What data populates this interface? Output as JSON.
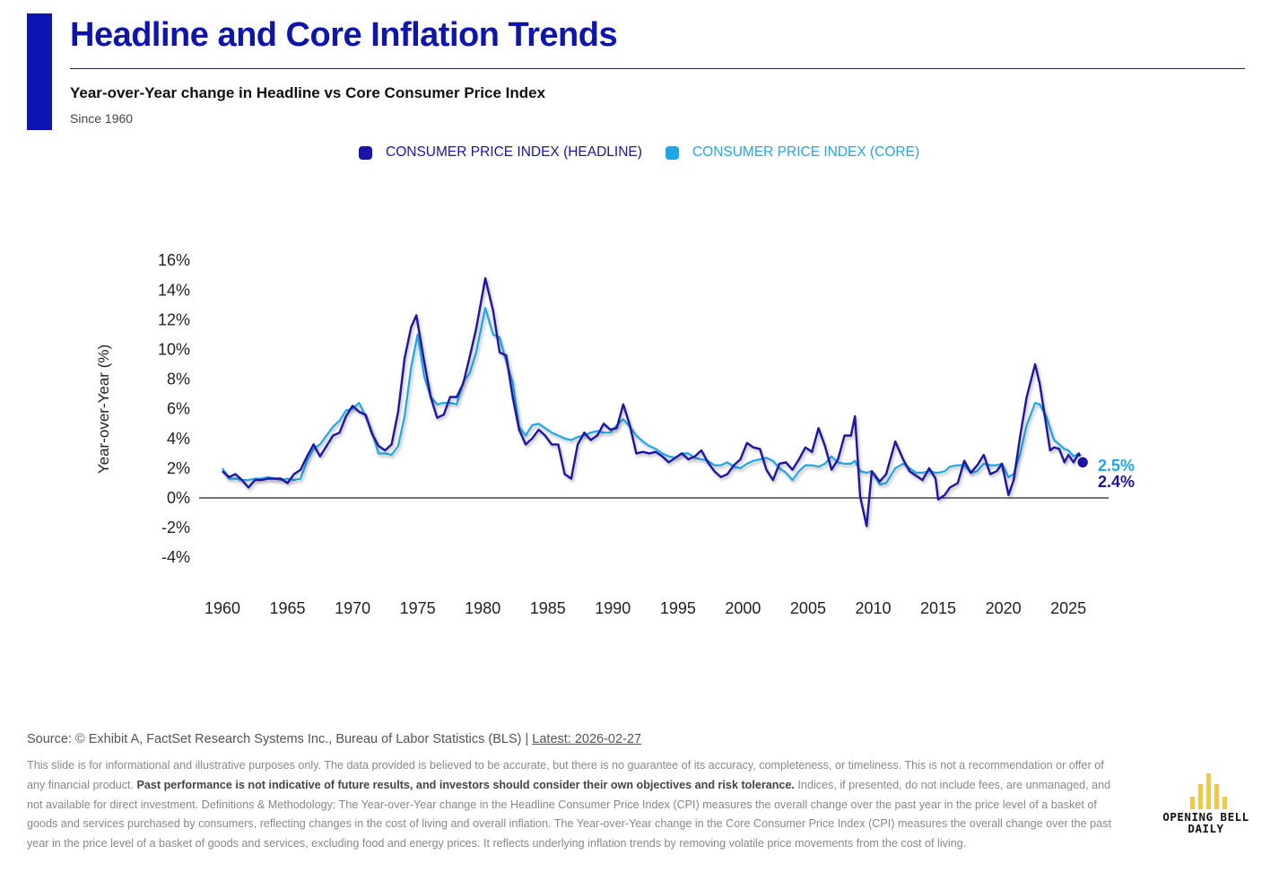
{
  "header": {
    "title": "Headline and Core Inflation Trends",
    "subtitle": "Year-over-Year change in Headline vs Core Consumer Price Index",
    "since": "Since 1960"
  },
  "colors": {
    "accent": "#0d14b3",
    "headline": "#1a14a8",
    "core": "#1ea7e8"
  },
  "chart_data": {
    "type": "line",
    "title": "",
    "xlabel": "",
    "ylabel": "Year-over-Year (%)",
    "xlim": [
      1959.2,
      1962.0
    ],
    "xlim_note": "",
    "x_ticks": [
      1960,
      1965,
      1970,
      1975,
      1980,
      1985,
      1990,
      1995,
      2000,
      2005,
      2010,
      2015,
      2020,
      2025
    ],
    "y_ticks": [
      16,
      14,
      12,
      10,
      8,
      6,
      4,
      2,
      0,
      -2,
      -4
    ],
    "y_tick_labels": [
      "16%",
      "14%",
      "12%",
      "10%",
      "8%",
      "6%",
      "4%",
      "2%",
      "0%",
      "-2%",
      "-4%"
    ],
    "ylim": [
      -4,
      16
    ],
    "grid": false,
    "legend_position": "top-center",
    "series": [
      {
        "name": "CONSUMER PRICE INDEX (HEADLINE)",
        "color": "#1a14a8",
        "end_label": "2.4%",
        "points": [
          [
            1960.0,
            1.8
          ],
          [
            1960.5,
            1.4
          ],
          [
            1961.0,
            1.6
          ],
          [
            1961.5,
            1.2
          ],
          [
            1962.0,
            0.7
          ],
          [
            1962.5,
            1.2
          ],
          [
            1963.0,
            1.2
          ],
          [
            1963.5,
            1.3
          ],
          [
            1964.0,
            1.3
          ],
          [
            1964.5,
            1.3
          ],
          [
            1965.0,
            1.0
          ],
          [
            1965.5,
            1.6
          ],
          [
            1966.0,
            1.9
          ],
          [
            1966.5,
            2.8
          ],
          [
            1967.0,
            3.6
          ],
          [
            1967.5,
            2.8
          ],
          [
            1968.0,
            3.5
          ],
          [
            1968.5,
            4.2
          ],
          [
            1969.0,
            4.4
          ],
          [
            1969.5,
            5.5
          ],
          [
            1970.0,
            6.2
          ],
          [
            1970.5,
            5.8
          ],
          [
            1971.0,
            5.6
          ],
          [
            1971.5,
            4.3
          ],
          [
            1972.0,
            3.5
          ],
          [
            1972.5,
            3.2
          ],
          [
            1973.0,
            3.6
          ],
          [
            1973.5,
            5.8
          ],
          [
            1974.0,
            9.4
          ],
          [
            1974.5,
            11.5
          ],
          [
            1974.9,
            12.3
          ],
          [
            1975.5,
            9.2
          ],
          [
            1976.0,
            6.8
          ],
          [
            1976.5,
            5.4
          ],
          [
            1977.0,
            5.6
          ],
          [
            1977.5,
            6.8
          ],
          [
            1978.0,
            6.8
          ],
          [
            1978.5,
            7.7
          ],
          [
            1979.0,
            9.5
          ],
          [
            1979.5,
            11.4
          ],
          [
            1980.2,
            14.8
          ],
          [
            1980.8,
            12.6
          ],
          [
            1981.3,
            9.8
          ],
          [
            1981.8,
            9.6
          ],
          [
            1982.3,
            6.8
          ],
          [
            1982.8,
            4.6
          ],
          [
            1983.3,
            3.6
          ],
          [
            1983.8,
            4.0
          ],
          [
            1984.3,
            4.6
          ],
          [
            1984.8,
            4.2
          ],
          [
            1985.3,
            3.6
          ],
          [
            1985.8,
            3.6
          ],
          [
            1986.3,
            1.6
          ],
          [
            1986.8,
            1.3
          ],
          [
            1987.3,
            3.6
          ],
          [
            1987.8,
            4.4
          ],
          [
            1988.3,
            3.9
          ],
          [
            1988.8,
            4.2
          ],
          [
            1989.3,
            5.0
          ],
          [
            1989.8,
            4.6
          ],
          [
            1990.3,
            4.7
          ],
          [
            1990.8,
            6.3
          ],
          [
            1991.3,
            4.9
          ],
          [
            1991.8,
            3.0
          ],
          [
            1992.3,
            3.1
          ],
          [
            1992.8,
            3.0
          ],
          [
            1993.3,
            3.1
          ],
          [
            1993.8,
            2.8
          ],
          [
            1994.3,
            2.4
          ],
          [
            1994.8,
            2.7
          ],
          [
            1995.3,
            3.0
          ],
          [
            1995.8,
            2.6
          ],
          [
            1996.3,
            2.8
          ],
          [
            1996.8,
            3.2
          ],
          [
            1997.3,
            2.4
          ],
          [
            1997.8,
            1.8
          ],
          [
            1998.3,
            1.4
          ],
          [
            1998.8,
            1.6
          ],
          [
            1999.3,
            2.2
          ],
          [
            1999.8,
            2.6
          ],
          [
            2000.3,
            3.7
          ],
          [
            2000.8,
            3.4
          ],
          [
            2001.3,
            3.3
          ],
          [
            2001.8,
            1.9
          ],
          [
            2002.3,
            1.2
          ],
          [
            2002.8,
            2.3
          ],
          [
            2003.3,
            2.4
          ],
          [
            2003.8,
            1.9
          ],
          [
            2004.3,
            2.6
          ],
          [
            2004.8,
            3.4
          ],
          [
            2005.3,
            3.1
          ],
          [
            2005.8,
            4.7
          ],
          [
            2006.3,
            3.5
          ],
          [
            2006.8,
            1.9
          ],
          [
            2007.3,
            2.6
          ],
          [
            2007.8,
            4.2
          ],
          [
            2008.3,
            4.2
          ],
          [
            2008.6,
            5.5
          ],
          [
            2009.0,
            0.1
          ],
          [
            2009.5,
            -1.9
          ],
          [
            2009.9,
            1.8
          ],
          [
            2010.5,
            1.1
          ],
          [
            2011.0,
            1.6
          ],
          [
            2011.7,
            3.8
          ],
          [
            2012.3,
            2.6
          ],
          [
            2012.8,
            1.8
          ],
          [
            2013.3,
            1.5
          ],
          [
            2013.8,
            1.2
          ],
          [
            2014.3,
            2.0
          ],
          [
            2014.8,
            1.3
          ],
          [
            2015.0,
            -0.1
          ],
          [
            2015.5,
            0.2
          ],
          [
            2015.9,
            0.7
          ],
          [
            2016.5,
            1.0
          ],
          [
            2017.0,
            2.5
          ],
          [
            2017.5,
            1.7
          ],
          [
            2018.0,
            2.2
          ],
          [
            2018.5,
            2.9
          ],
          [
            2019.0,
            1.6
          ],
          [
            2019.5,
            1.8
          ],
          [
            2019.9,
            2.3
          ],
          [
            2020.4,
            0.2
          ],
          [
            2020.8,
            1.2
          ],
          [
            2021.3,
            4.2
          ],
          [
            2021.8,
            6.8
          ],
          [
            2022.45,
            9.0
          ],
          [
            2022.8,
            7.7
          ],
          [
            2023.3,
            4.9
          ],
          [
            2023.6,
            3.2
          ],
          [
            2023.9,
            3.4
          ],
          [
            2024.3,
            3.3
          ],
          [
            2024.7,
            2.4
          ],
          [
            2025.0,
            2.9
          ],
          [
            2025.4,
            2.4
          ],
          [
            2025.8,
            3.0
          ],
          [
            2026.1,
            2.4
          ]
        ]
      },
      {
        "name": "CONSUMER PRICE INDEX (CORE)",
        "color": "#1ea7e8",
        "end_label": "2.5%",
        "points": [
          [
            1960.0,
            2.0
          ],
          [
            1960.5,
            1.3
          ],
          [
            1961.0,
            1.3
          ],
          [
            1961.5,
            1.2
          ],
          [
            1962.0,
            1.2
          ],
          [
            1962.5,
            1.3
          ],
          [
            1963.0,
            1.3
          ],
          [
            1963.5,
            1.4
          ],
          [
            1964.0,
            1.3
          ],
          [
            1964.5,
            1.2
          ],
          [
            1965.0,
            1.3
          ],
          [
            1965.5,
            1.2
          ],
          [
            1966.0,
            1.3
          ],
          [
            1966.5,
            2.5
          ],
          [
            1967.0,
            3.3
          ],
          [
            1967.5,
            3.6
          ],
          [
            1968.0,
            4.2
          ],
          [
            1968.5,
            4.8
          ],
          [
            1969.0,
            5.2
          ],
          [
            1969.5,
            5.9
          ],
          [
            1970.0,
            6.0
          ],
          [
            1970.5,
            6.4
          ],
          [
            1971.0,
            5.5
          ],
          [
            1971.5,
            4.4
          ],
          [
            1972.0,
            3.0
          ],
          [
            1972.5,
            3.0
          ],
          [
            1973.0,
            2.9
          ],
          [
            1973.5,
            3.5
          ],
          [
            1974.0,
            5.5
          ],
          [
            1974.5,
            8.8
          ],
          [
            1975.0,
            11.0
          ],
          [
            1975.5,
            8.2
          ],
          [
            1976.0,
            6.8
          ],
          [
            1976.5,
            6.3
          ],
          [
            1977.0,
            6.4
          ],
          [
            1977.5,
            6.4
          ],
          [
            1978.0,
            6.3
          ],
          [
            1978.5,
            7.8
          ],
          [
            1979.0,
            8.4
          ],
          [
            1979.5,
            9.8
          ],
          [
            1980.2,
            12.8
          ],
          [
            1980.8,
            11.0
          ],
          [
            1981.3,
            10.8
          ],
          [
            1981.8,
            9.2
          ],
          [
            1982.3,
            7.8
          ],
          [
            1982.8,
            4.8
          ],
          [
            1983.3,
            4.2
          ],
          [
            1983.8,
            4.9
          ],
          [
            1984.3,
            5.0
          ],
          [
            1984.8,
            4.7
          ],
          [
            1985.3,
            4.4
          ],
          [
            1985.8,
            4.2
          ],
          [
            1986.3,
            4.0
          ],
          [
            1986.8,
            3.9
          ],
          [
            1987.3,
            4.1
          ],
          [
            1987.8,
            4.2
          ],
          [
            1988.3,
            4.4
          ],
          [
            1988.8,
            4.5
          ],
          [
            1989.3,
            4.4
          ],
          [
            1989.8,
            4.4
          ],
          [
            1990.3,
            4.9
          ],
          [
            1990.8,
            5.3
          ],
          [
            1991.3,
            4.8
          ],
          [
            1991.8,
            4.2
          ],
          [
            1992.3,
            3.8
          ],
          [
            1992.8,
            3.5
          ],
          [
            1993.3,
            3.3
          ],
          [
            1993.8,
            3.0
          ],
          [
            1994.3,
            2.8
          ],
          [
            1994.8,
            2.7
          ],
          [
            1995.3,
            3.0
          ],
          [
            1995.8,
            3.0
          ],
          [
            1996.3,
            2.7
          ],
          [
            1996.8,
            2.6
          ],
          [
            1997.3,
            2.5
          ],
          [
            1997.8,
            2.2
          ],
          [
            1998.3,
            2.2
          ],
          [
            1998.8,
            2.4
          ],
          [
            1999.3,
            2.1
          ],
          [
            1999.8,
            2.0
          ],
          [
            2000.3,
            2.3
          ],
          [
            2000.8,
            2.5
          ],
          [
            2001.3,
            2.6
          ],
          [
            2001.8,
            2.7
          ],
          [
            2002.3,
            2.5
          ],
          [
            2002.8,
            2.0
          ],
          [
            2003.3,
            1.7
          ],
          [
            2003.8,
            1.2
          ],
          [
            2004.3,
            1.8
          ],
          [
            2004.8,
            2.2
          ],
          [
            2005.3,
            2.2
          ],
          [
            2005.8,
            2.1
          ],
          [
            2006.3,
            2.3
          ],
          [
            2006.8,
            2.8
          ],
          [
            2007.3,
            2.4
          ],
          [
            2007.8,
            2.3
          ],
          [
            2008.3,
            2.3
          ],
          [
            2008.6,
            2.5
          ],
          [
            2009.0,
            1.8
          ],
          [
            2009.5,
            1.7
          ],
          [
            2009.9,
            1.8
          ],
          [
            2010.5,
            0.9
          ],
          [
            2011.0,
            1.0
          ],
          [
            2011.7,
            2.0
          ],
          [
            2012.3,
            2.3
          ],
          [
            2012.8,
            2.0
          ],
          [
            2013.3,
            1.7
          ],
          [
            2013.8,
            1.7
          ],
          [
            2014.3,
            1.8
          ],
          [
            2014.8,
            1.7
          ],
          [
            2015.0,
            1.7
          ],
          [
            2015.5,
            1.8
          ],
          [
            2015.9,
            2.1
          ],
          [
            2016.5,
            2.2
          ],
          [
            2017.0,
            2.2
          ],
          [
            2017.5,
            1.7
          ],
          [
            2018.0,
            1.8
          ],
          [
            2018.5,
            2.3
          ],
          [
            2019.0,
            2.2
          ],
          [
            2019.5,
            2.2
          ],
          [
            2019.9,
            2.3
          ],
          [
            2020.4,
            1.4
          ],
          [
            2020.8,
            1.6
          ],
          [
            2021.3,
            3.0
          ],
          [
            2021.8,
            4.9
          ],
          [
            2022.45,
            6.4
          ],
          [
            2022.8,
            6.3
          ],
          [
            2023.3,
            5.5
          ],
          [
            2023.6,
            4.7
          ],
          [
            2023.9,
            3.9
          ],
          [
            2024.3,
            3.6
          ],
          [
            2024.7,
            3.3
          ],
          [
            2025.0,
            3.2
          ],
          [
            2025.4,
            2.8
          ],
          [
            2025.8,
            3.0
          ],
          [
            2026.1,
            2.5
          ]
        ]
      }
    ]
  },
  "footer": {
    "source_text": "Source: © Exhibit A, FactSet Research Systems Inc., Bureau of Labor Statistics (BLS) | ",
    "latest": "Latest: 2026-02-27",
    "disclaimer_1": "This slide is for informational and illustrative purposes only. The data provided is believed to be accurate, but there is no guarantee of its accuracy, completeness, or timeliness. This is not a recommendation or offer of any financial product. ",
    "disclaimer_bold": "Past performance is not indicative of future results, and investors should consider their own objectives and risk tolerance.",
    "disclaimer_2": " Indices, if presented, do not include fees, are unmanaged, and not available for direct investment. Definitions & Methodology: The Year-over-Year change in the Headline Consumer Price Index (CPI) measures the overall change over the past year in the price level of a basket of goods and services purchased by consumers, reflecting changes in the cost of living and overall inflation. The Year-over-Year change in the Core Consumer Price Index (CPI) measures the overall change over the past year in the price level of a basket of goods and services, excluding food and energy prices. It reflects underlying inflation trends by removing volatile price movements from the cost of living."
  },
  "brand": {
    "line1": "OPENING BELL",
    "line2": "DAILY"
  }
}
